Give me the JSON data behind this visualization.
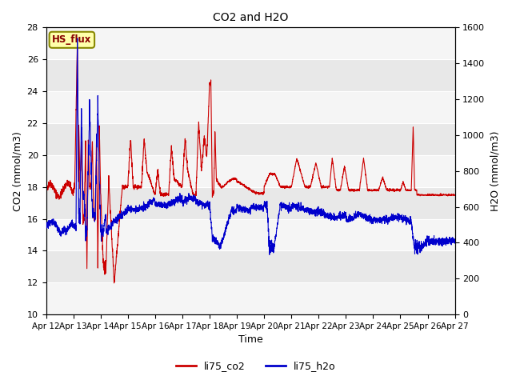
{
  "title": "CO2 and H2O",
  "xlabel": "Time",
  "ylabel_left": "CO2 (mmol/m3)",
  "ylabel_right": "H2O (mmol/m3)",
  "annotation": "HS_flux",
  "legend": [
    "li75_co2",
    "li75_h2o"
  ],
  "co2_color": "#cc0000",
  "h2o_color": "#0000cc",
  "ylim_left": [
    10,
    28
  ],
  "ylim_right": [
    0,
    1600
  ],
  "yticks_left": [
    10,
    12,
    14,
    16,
    18,
    20,
    22,
    24,
    26,
    28
  ],
  "yticks_right": [
    0,
    200,
    400,
    600,
    800,
    1000,
    1200,
    1400,
    1600
  ],
  "fig_bg": "#ffffff",
  "plot_bg_light": "#f5f5f5",
  "plot_bg_dark": "#e8e8e8",
  "grid_color": "#ffffff",
  "xtick_labels": [
    "Apr 12",
    "Apr 13",
    "Apr 14",
    "Apr 15",
    "Apr 16",
    "Apr 17",
    "Apr 18",
    "Apr 19",
    "Apr 20",
    "Apr 21",
    "Apr 22",
    "Apr 23",
    "Apr 24",
    "Apr 25",
    "Apr 26",
    "Apr 27"
  ],
  "linewidth": 0.8,
  "annotation_facecolor": "#ffffaa",
  "annotation_edgecolor": "#888800",
  "annotation_textcolor": "#880000"
}
